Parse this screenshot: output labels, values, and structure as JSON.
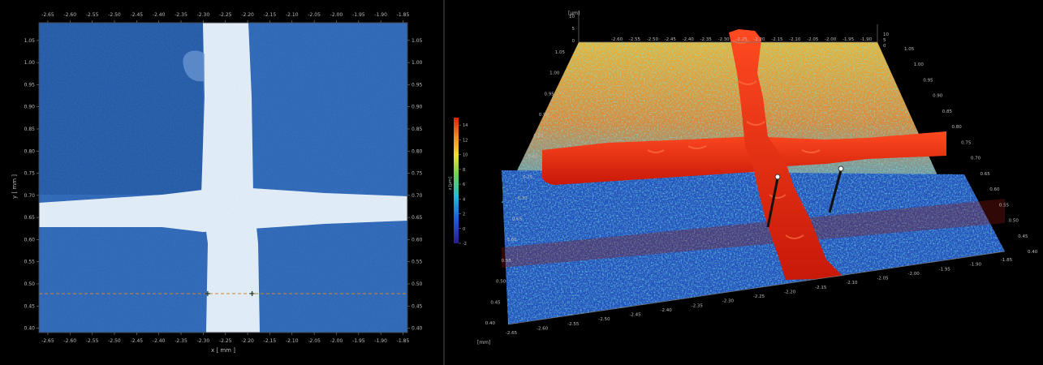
{
  "left_view": {
    "x_ticks": [
      "-2.65",
      "-2.60",
      "-2.55",
      "-2.50",
      "-2.45",
      "-2.40",
      "-2.35",
      "-2.30",
      "-2.25",
      "-2.20",
      "-2.15",
      "-2.10",
      "-2.05",
      "-2.00",
      "-1.95",
      "-1.90",
      "-1.85"
    ],
    "y_ticks": [
      "1.05",
      "1.00",
      "0.95",
      "0.90",
      "0.85",
      "0.80",
      "0.75",
      "0.70",
      "0.65",
      "0.60",
      "0.55",
      "0.50",
      "0.45",
      "0.40"
    ],
    "x_label": "x [ mm ]",
    "y_label": "y [ mm ]",
    "x_range": [
      -2.67,
      -1.84
    ],
    "y_range": [
      0.39,
      1.09
    ],
    "profile_line_y": 0.478,
    "marker_x": [
      -2.29,
      -2.19
    ],
    "colors": {
      "background": "#2a64b6",
      "dark_region": "#1d4f9a",
      "cross": "#d8e6f4",
      "profile_line": "#d18a2a"
    }
  },
  "right_view": {
    "z_unit_label": "[µm]",
    "mm_label": "[mm]",
    "colorbar_label": "z [µm]",
    "colorbar_ticks": [
      "14",
      "12",
      "10",
      "8",
      "6",
      "4",
      "2",
      "0",
      "-2"
    ],
    "colorbar_range": [
      -2,
      15
    ],
    "top_x_ticks": [
      "-2.60",
      "-2.55",
      "-2.50",
      "-2.45",
      "-2.40",
      "-2.35",
      "-2.30",
      "-2.25",
      "-2.20",
      "-2.15",
      "-2.10",
      "-2.05",
      "-2.00",
      "-1.95",
      "-1.90"
    ],
    "bottom_x_ticks": [
      "-2.65",
      "-2.60",
      "-2.55",
      "-2.50",
      "-2.45",
      "-2.40",
      "-2.35",
      "-2.30",
      "-2.25",
      "-2.20",
      "-2.15",
      "-2.10",
      "-2.05",
      "-2.00",
      "-1.95",
      "-1.90",
      "-1.85"
    ],
    "left_y_ticks": [
      "1.05",
      "1.00",
      "0.95",
      "0.90",
      "0.85",
      "0.80",
      "0.75",
      "0.70",
      "0.65",
      "0.60",
      "0.55",
      "0.50",
      "0.45",
      "0.40"
    ],
    "right_y_ticks": [
      "1.05",
      "1.00",
      "0.95",
      "0.90",
      "0.85",
      "0.80",
      "0.75",
      "0.70",
      "0.65",
      "0.60",
      "0.55",
      "0.50",
      "0.45",
      "0.40"
    ],
    "z_ticks_left": [
      "10",
      "5",
      "0"
    ],
    "z_ticks_right": [
      "10",
      "5",
      "0"
    ],
    "colors": {
      "ridge": "#e8260e",
      "base_blue": "#1e4fbf",
      "base_warm": "#e8a030"
    }
  }
}
